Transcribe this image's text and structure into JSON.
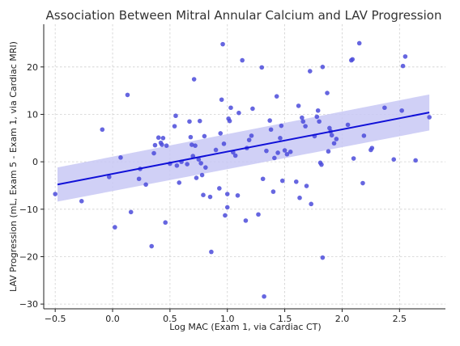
{
  "chart_data": {
    "type": "scatter",
    "title": "Association Between Mitral Annular Calcium and LAV Progression",
    "xlabel": "Log MAC (Exam 1, via Cardiac CT)",
    "ylabel": "LAV Progression (mL, Exam 5 - Exam 1, via Cardiac MRI)",
    "xlim": [
      -0.6,
      2.9
    ],
    "ylim": [
      -31,
      29
    ],
    "xticks": [
      -0.5,
      0.0,
      0.5,
      1.0,
      1.5,
      2.0,
      2.5
    ],
    "xtick_labels": [
      "−0.5",
      "0.0",
      "0.5",
      "1.0",
      "1.5",
      "2.0",
      "2.5"
    ],
    "yticks": [
      -30,
      -20,
      -10,
      0,
      10,
      20
    ],
    "ytick_labels": [
      "−30",
      "−20",
      "−10",
      "0",
      "10",
      "20"
    ],
    "grid": true,
    "point_color": "#4b4bdb",
    "line_color": "#1010d8",
    "band_color": "#c8c8f4",
    "regression": {
      "x": [
        -0.48,
        2.76
      ],
      "y": [
        -4.8,
        10.4
      ],
      "ci_lower": [
        -8.4,
        6.6
      ],
      "ci_upper": [
        -1.2,
        14.2
      ]
    },
    "points": [
      {
        "x": -0.5,
        "y": -6.8
      },
      {
        "x": -0.27,
        "y": -8.3
      },
      {
        "x": -0.09,
        "y": 6.8
      },
      {
        "x": -0.03,
        "y": -3.2
      },
      {
        "x": 0.02,
        "y": -13.8
      },
      {
        "x": 0.07,
        "y": 0.9
      },
      {
        "x": 0.13,
        "y": 14.1
      },
      {
        "x": 0.16,
        "y": -10.6
      },
      {
        "x": 0.23,
        "y": -3.6
      },
      {
        "x": 0.24,
        "y": -1.5
      },
      {
        "x": 0.29,
        "y": -4.8
      },
      {
        "x": 0.34,
        "y": -17.8
      },
      {
        "x": 0.36,
        "y": 1.8
      },
      {
        "x": 0.37,
        "y": 3.5
      },
      {
        "x": 0.4,
        "y": 5.1
      },
      {
        "x": 0.42,
        "y": 4.0
      },
      {
        "x": 0.43,
        "y": 3.6
      },
      {
        "x": 0.44,
        "y": 5.0
      },
      {
        "x": 0.46,
        "y": -12.8
      },
      {
        "x": 0.47,
        "y": 3.4
      },
      {
        "x": 0.5,
        "y": -0.4
      },
      {
        "x": 0.54,
        "y": 7.5
      },
      {
        "x": 0.55,
        "y": 9.7
      },
      {
        "x": 0.56,
        "y": -0.8
      },
      {
        "x": 0.58,
        "y": -4.4
      },
      {
        "x": 0.6,
        "y": 0.0
      },
      {
        "x": 0.65,
        "y": -0.5
      },
      {
        "x": 0.67,
        "y": 8.5
      },
      {
        "x": 0.68,
        "y": 5.2
      },
      {
        "x": 0.69,
        "y": 3.6
      },
      {
        "x": 0.7,
        "y": 1.2
      },
      {
        "x": 0.71,
        "y": 17.4
      },
      {
        "x": 0.72,
        "y": 3.4
      },
      {
        "x": 0.73,
        "y": -3.4
      },
      {
        "x": 0.75,
        "y": 0.5
      },
      {
        "x": 0.76,
        "y": 8.6
      },
      {
        "x": 0.77,
        "y": -0.3
      },
      {
        "x": 0.78,
        "y": -2.8
      },
      {
        "x": 0.79,
        "y": -7.0
      },
      {
        "x": 0.8,
        "y": 5.4
      },
      {
        "x": 0.81,
        "y": -1.2
      },
      {
        "x": 0.85,
        "y": -7.4
      },
      {
        "x": 0.86,
        "y": -19.0
      },
      {
        "x": 0.9,
        "y": 2.5
      },
      {
        "x": 0.93,
        "y": -5.6
      },
      {
        "x": 0.94,
        "y": 6.0
      },
      {
        "x": 0.95,
        "y": 13.1
      },
      {
        "x": 0.96,
        "y": 24.8
      },
      {
        "x": 0.97,
        "y": 3.8
      },
      {
        "x": 0.98,
        "y": -11.3
      },
      {
        "x": 1.0,
        "y": -6.8
      },
      {
        "x": 1.0,
        "y": -9.6
      },
      {
        "x": 1.01,
        "y": 9.1
      },
      {
        "x": 1.02,
        "y": 8.6
      },
      {
        "x": 1.03,
        "y": 11.4
      },
      {
        "x": 1.05,
        "y": 2.0
      },
      {
        "x": 1.07,
        "y": 1.3
      },
      {
        "x": 1.09,
        "y": -7.1
      },
      {
        "x": 1.1,
        "y": 10.3
      },
      {
        "x": 1.13,
        "y": 21.4
      },
      {
        "x": 1.16,
        "y": -12.4
      },
      {
        "x": 1.17,
        "y": 2.9
      },
      {
        "x": 1.19,
        "y": 4.6
      },
      {
        "x": 1.21,
        "y": 5.5
      },
      {
        "x": 1.22,
        "y": 11.2
      },
      {
        "x": 1.27,
        "y": -11.1
      },
      {
        "x": 1.3,
        "y": 19.9
      },
      {
        "x": 1.31,
        "y": -3.6
      },
      {
        "x": 1.32,
        "y": -28.4
      },
      {
        "x": 1.34,
        "y": 2.3
      },
      {
        "x": 1.37,
        "y": 8.7
      },
      {
        "x": 1.38,
        "y": 6.8
      },
      {
        "x": 1.4,
        "y": -6.3
      },
      {
        "x": 1.41,
        "y": 0.8
      },
      {
        "x": 1.43,
        "y": 13.8
      },
      {
        "x": 1.44,
        "y": 1.9
      },
      {
        "x": 1.46,
        "y": 5.0
      },
      {
        "x": 1.47,
        "y": 7.6
      },
      {
        "x": 1.48,
        "y": -4.0
      },
      {
        "x": 1.5,
        "y": 2.4
      },
      {
        "x": 1.52,
        "y": 1.6
      },
      {
        "x": 1.55,
        "y": 2.1
      },
      {
        "x": 1.6,
        "y": -4.2
      },
      {
        "x": 1.62,
        "y": 11.8
      },
      {
        "x": 1.63,
        "y": -7.6
      },
      {
        "x": 1.65,
        "y": 9.3
      },
      {
        "x": 1.66,
        "y": 8.5
      },
      {
        "x": 1.68,
        "y": 7.5
      },
      {
        "x": 1.69,
        "y": -5.1
      },
      {
        "x": 1.72,
        "y": 19.1
      },
      {
        "x": 1.73,
        "y": -8.9
      },
      {
        "x": 1.76,
        "y": 5.4
      },
      {
        "x": 1.78,
        "y": 9.5
      },
      {
        "x": 1.79,
        "y": 10.8
      },
      {
        "x": 1.8,
        "y": 8.5
      },
      {
        "x": 1.81,
        "y": -0.2
      },
      {
        "x": 1.82,
        "y": -0.6
      },
      {
        "x": 1.83,
        "y": 20.0
      },
      {
        "x": 1.83,
        "y": -20.2
      },
      {
        "x": 1.87,
        "y": 14.5
      },
      {
        "x": 1.88,
        "y": 2.2
      },
      {
        "x": 1.89,
        "y": 7.1
      },
      {
        "x": 1.9,
        "y": 6.4
      },
      {
        "x": 1.91,
        "y": 5.6
      },
      {
        "x": 1.93,
        "y": 3.9
      },
      {
        "x": 1.95,
        "y": 4.8
      },
      {
        "x": 2.05,
        "y": 7.8
      },
      {
        "x": 2.08,
        "y": 21.4
      },
      {
        "x": 2.09,
        "y": 21.6
      },
      {
        "x": 2.1,
        "y": 0.7
      },
      {
        "x": 2.15,
        "y": 25.0
      },
      {
        "x": 2.18,
        "y": -4.5
      },
      {
        "x": 2.19,
        "y": 5.5
      },
      {
        "x": 2.25,
        "y": 2.5
      },
      {
        "x": 2.26,
        "y": 2.9
      },
      {
        "x": 2.37,
        "y": 11.4
      },
      {
        "x": 2.45,
        "y": 0.5
      },
      {
        "x": 2.52,
        "y": 10.8
      },
      {
        "x": 2.53,
        "y": 20.2
      },
      {
        "x": 2.55,
        "y": 22.2
      },
      {
        "x": 2.64,
        "y": 0.3
      },
      {
        "x": 2.76,
        "y": 9.4
      }
    ]
  }
}
